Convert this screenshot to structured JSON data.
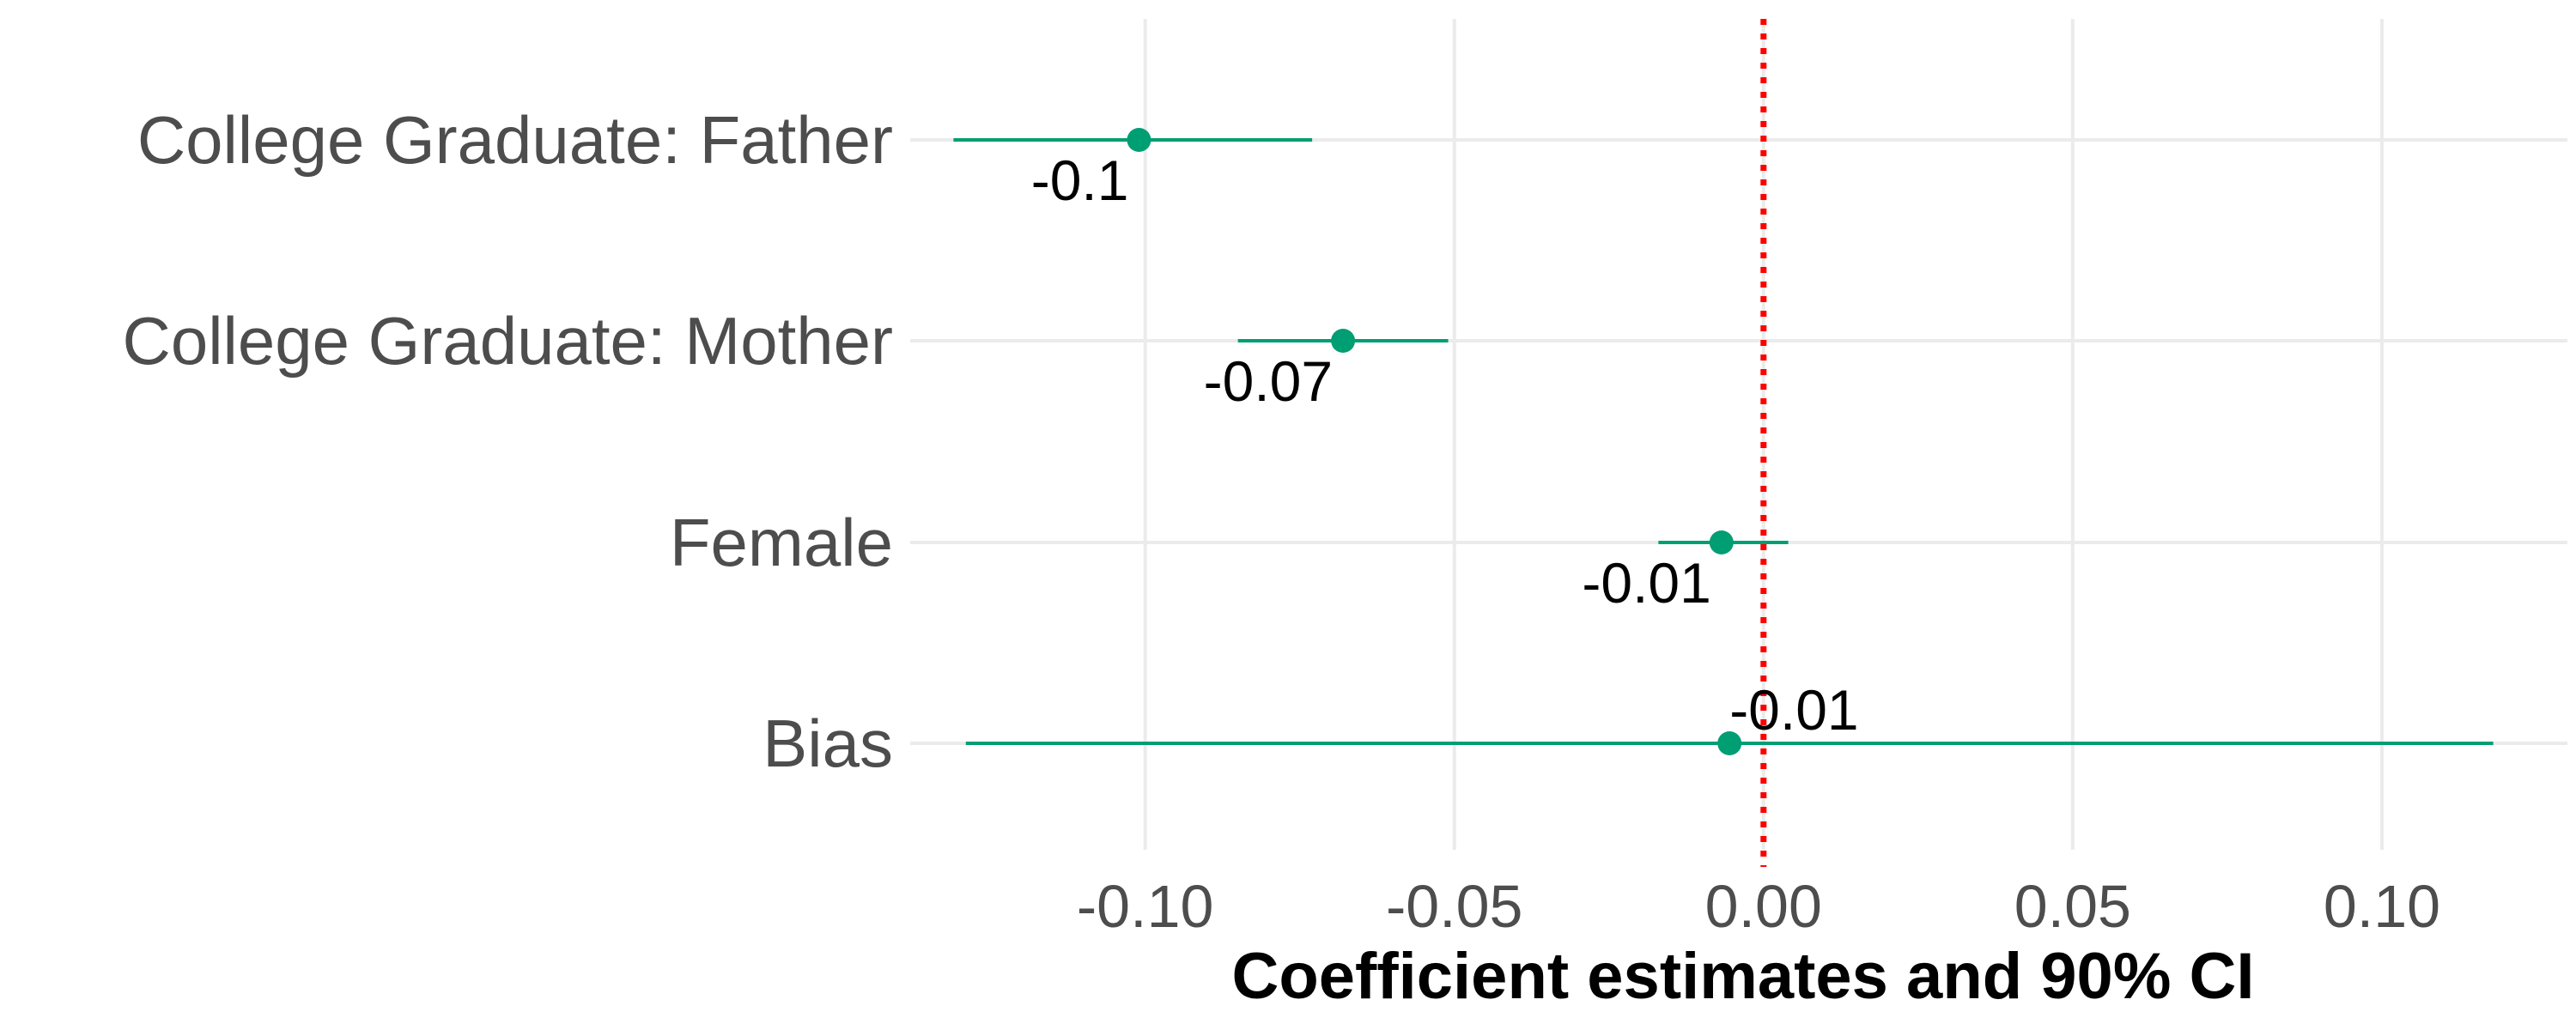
{
  "chart_data": {
    "type": "scatter",
    "subtype": "coefficient-plot",
    "title": "",
    "xlabel": "Coefficient estimates and 90% CI",
    "ylabel": "",
    "xlim": [
      -0.138,
      0.13
    ],
    "xticks": [
      -0.1,
      -0.05,
      0.0,
      0.05,
      0.1
    ],
    "xtick_labels": [
      "-0.10",
      "-0.05",
      "0.00",
      "0.05",
      "0.10"
    ],
    "grid": true,
    "legend": "none",
    "reference_line": {
      "x": 0.0,
      "style": "dotted",
      "color": "#ff0000"
    },
    "series_color": "#009e73",
    "items": [
      {
        "term": "College Graduate: Father",
        "estimate": -0.101,
        "ci_low": -0.131,
        "ci_high": -0.073,
        "label": "-0.1",
        "label_position": "below"
      },
      {
        "term": "College Graduate: Mother",
        "estimate": -0.068,
        "ci_low": -0.085,
        "ci_high": -0.051,
        "label": "-0.07",
        "label_position": "below"
      },
      {
        "term": "Female",
        "estimate": -0.0068,
        "ci_low": -0.017,
        "ci_high": 0.004,
        "label": "-0.01",
        "label_position": "below"
      },
      {
        "term": "Bias",
        "estimate": -0.0055,
        "ci_low": -0.129,
        "ci_high": 0.118,
        "label": "-0.01",
        "label_position": "above"
      }
    ]
  }
}
